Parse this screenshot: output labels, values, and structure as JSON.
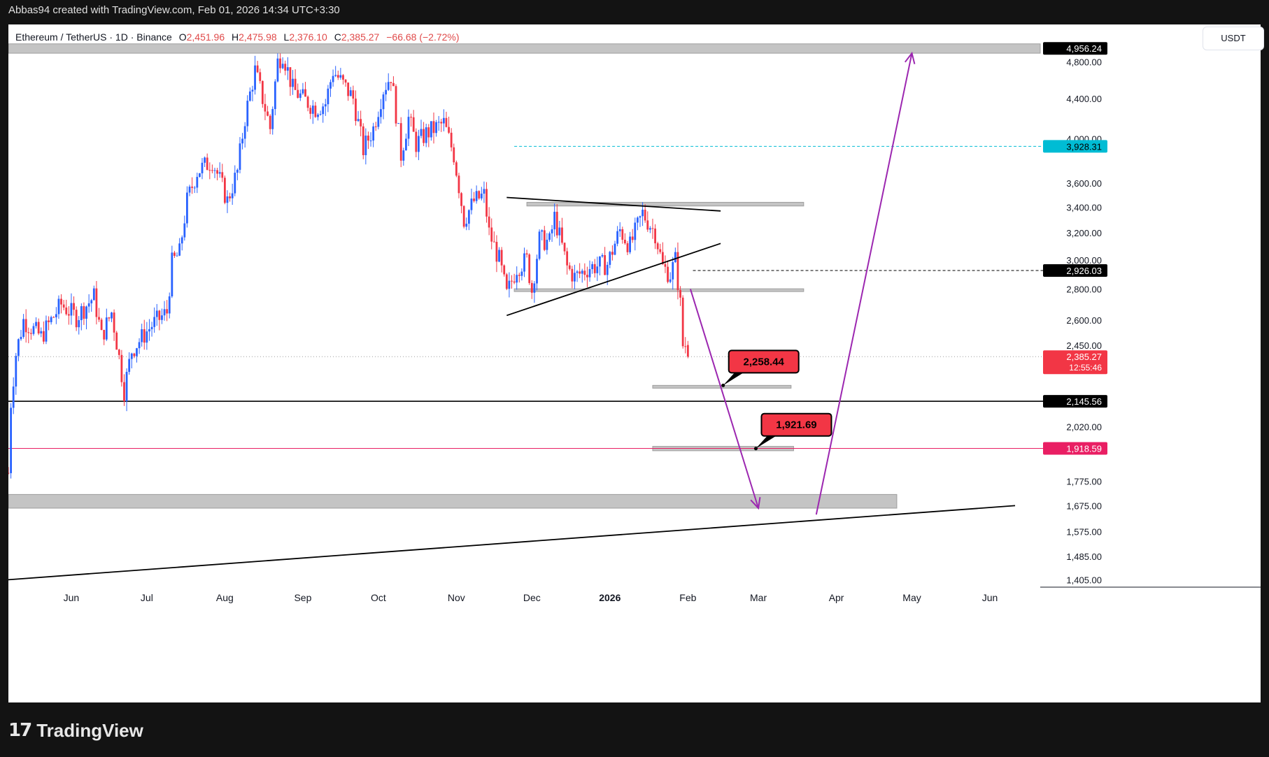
{
  "header": {
    "text": "Abbas94 created with TradingView.com, Feb 01, 2026 14:34 UTC+3:30"
  },
  "symbol": {
    "name": "Ethereum / TetherUS · 1D · Binance",
    "o_label": "O",
    "o_value": "2,451.96",
    "h_label": "H",
    "h_value": "2,475.98",
    "l_label": "L",
    "l_value": "2,376.10",
    "c_label": "C",
    "c_value": "2,385.27",
    "change": "−66.68 (−2.72%)"
  },
  "currency_button": "USDT",
  "footer": {
    "logo_text": "TradingView"
  },
  "colors": {
    "up": "#2962ff",
    "down": "#f23645",
    "purple": "#9c27b0",
    "level_pink": "#e91e63",
    "cyan": "#00bcd4",
    "zone_gray": "#c4c4c4"
  },
  "chart_data": {
    "type": "candlestick",
    "symbol": "ETHUSDT",
    "interval": "1D",
    "y_axis": {
      "scale": "log",
      "range": [
        1360,
        5100
      ],
      "ticks": [
        "4,800.00",
        "4,400.00",
        "4,000.00",
        "3,600.00",
        "3,400.00",
        "3,200.00",
        "3,000.00",
        "2,800.00",
        "2,600.00",
        "2,450.00",
        "2,020.00",
        "1,775.00",
        "1,675.00",
        "1,575.00",
        "1,485.00",
        "1,405.00"
      ],
      "price_labels": [
        {
          "value": 4956.24,
          "text": "4,956.24",
          "style": "black"
        },
        {
          "value": 3928.31,
          "text": "3,928.31",
          "style": "cyan"
        },
        {
          "value": 2926.03,
          "text": "2,926.03",
          "style": "black"
        },
        {
          "value": 2385.27,
          "text": "2,385.27",
          "sub": "12:55:46",
          "style": "red"
        },
        {
          "value": 2145.56,
          "text": "2,145.56",
          "style": "black"
        },
        {
          "value": 1918.59,
          "text": "1,918.59",
          "style": "pink"
        }
      ]
    },
    "x_axis": {
      "start": "2025-05-07",
      "end": "2026-06-21",
      "ticks": [
        {
          "date": "2025-06-01",
          "label": "Jun"
        },
        {
          "date": "2025-07-01",
          "label": "Jul"
        },
        {
          "date": "2025-08-01",
          "label": "Aug"
        },
        {
          "date": "2025-09-01",
          "label": "Sep"
        },
        {
          "date": "2025-10-01",
          "label": "Oct"
        },
        {
          "date": "2025-11-01",
          "label": "Nov"
        },
        {
          "date": "2025-12-01",
          "label": "Dec"
        },
        {
          "date": "2026-01-01",
          "label": "2026",
          "bold": true
        },
        {
          "date": "2026-02-01",
          "label": "Feb"
        },
        {
          "date": "2026-03-01",
          "label": "Mar"
        },
        {
          "date": "2026-04-01",
          "label": "Apr"
        },
        {
          "date": "2026-05-01",
          "label": "May"
        },
        {
          "date": "2026-06-01",
          "label": "Jun"
        }
      ]
    },
    "price_path": [
      [
        "2025-05-07",
        1810
      ],
      [
        "2025-05-08",
        2140
      ],
      [
        "2025-05-10",
        2400
      ],
      [
        "2025-05-13",
        2600
      ],
      [
        "2025-05-20",
        2500
      ],
      [
        "2025-05-28",
        2700
      ],
      [
        "2025-06-03",
        2620
      ],
      [
        "2025-06-10",
        2750
      ],
      [
        "2025-06-13",
        2500
      ],
      [
        "2025-06-17",
        2650
      ],
      [
        "2025-06-20",
        2380
      ],
      [
        "2025-06-22",
        2200
      ],
      [
        "2025-06-25",
        2420
      ],
      [
        "2025-07-03",
        2570
      ],
      [
        "2025-07-09",
        2650
      ],
      [
        "2025-07-11",
        2980
      ],
      [
        "2025-07-14",
        3050
      ],
      [
        "2025-07-17",
        3450
      ],
      [
        "2025-07-21",
        3700
      ],
      [
        "2025-07-27",
        3800
      ],
      [
        "2025-08-02",
        3450
      ],
      [
        "2025-08-06",
        3700
      ],
      [
        "2025-08-09",
        4200
      ],
      [
        "2025-08-13",
        4700
      ],
      [
        "2025-08-16",
        4400
      ],
      [
        "2025-08-19",
        4100
      ],
      [
        "2025-08-22",
        4800
      ],
      [
        "2025-08-24",
        4900
      ],
      [
        "2025-08-28",
        4500
      ],
      [
        "2025-09-01",
        4400
      ],
      [
        "2025-09-06",
        4300
      ],
      [
        "2025-09-10",
        4350
      ],
      [
        "2025-09-13",
        4700
      ],
      [
        "2025-09-17",
        4550
      ],
      [
        "2025-09-21",
        4400
      ],
      [
        "2025-09-25",
        3900
      ],
      [
        "2025-09-29",
        4100
      ],
      [
        "2025-10-03",
        4500
      ],
      [
        "2025-10-06",
        4650
      ],
      [
        "2025-10-10",
        3850
      ],
      [
        "2025-10-13",
        4200
      ],
      [
        "2025-10-16",
        3950
      ],
      [
        "2025-10-20",
        4050
      ],
      [
        "2025-10-27",
        4150
      ],
      [
        "2025-10-31",
        3850
      ],
      [
        "2025-11-04",
        3300
      ],
      [
        "2025-11-08",
        3450
      ],
      [
        "2025-11-12",
        3500
      ],
      [
        "2025-11-14",
        3200
      ],
      [
        "2025-11-18",
        3000
      ],
      [
        "2025-11-21",
        2760
      ],
      [
        "2025-11-25",
        2950
      ],
      [
        "2025-11-29",
        3000
      ],
      [
        "2025-12-01",
        2790
      ],
      [
        "2025-12-04",
        3150
      ],
      [
        "2025-12-08",
        3130
      ],
      [
        "2025-12-10",
        3320
      ],
      [
        "2025-12-15",
        2950
      ],
      [
        "2025-12-18",
        2880
      ],
      [
        "2025-12-24",
        2950
      ],
      [
        "2025-12-31",
        2970
      ],
      [
        "2026-01-05",
        3220
      ],
      [
        "2026-01-09",
        3100
      ],
      [
        "2026-01-14",
        3350
      ],
      [
        "2026-01-19",
        3200
      ],
      [
        "2026-01-22",
        2950
      ],
      [
        "2026-01-25",
        2900
      ],
      [
        "2026-01-27",
        3000
      ],
      [
        "2026-01-29",
        2700
      ],
      [
        "2026-01-30",
        2450
      ],
      [
        "2026-01-31",
        2450
      ],
      [
        "2026-02-01",
        2385.27
      ]
    ],
    "last_candle": {
      "date": "2026-02-01",
      "open": 2451.96,
      "high": 2475.98,
      "low": 2376.1,
      "close": 2385.27
    },
    "horizontal_levels": [
      {
        "value": 2145.56,
        "color": "#000000",
        "style": "solid"
      },
      {
        "value": 1918.59,
        "color": "#e91e63",
        "style": "solid"
      },
      {
        "value": 3928.31,
        "color": "#00bcd4",
        "style": "dashed",
        "from": "2025-11-24"
      },
      {
        "value": 2926.03,
        "color": "#000000",
        "style": "dashed",
        "from": "2026-02-03"
      },
      {
        "value": 2385.27,
        "color": "#9e9e9e",
        "style": "dotted"
      }
    ],
    "zones": [
      {
        "top": 5010,
        "bottom": 4900,
        "from": "2025-05-07",
        "to": "2026-06-21"
      },
      {
        "top": 3440,
        "bottom": 3410,
        "from": "2025-11-29",
        "to": "2026-03-19"
      },
      {
        "top": 2802,
        "bottom": 2786,
        "from": "2025-11-24",
        "to": "2026-03-19"
      },
      {
        "top": 2228,
        "bottom": 2218,
        "from": "2026-01-18",
        "to": "2026-03-14"
      },
      {
        "top": 1928,
        "bottom": 1908,
        "from": "2026-01-18",
        "to": "2026-03-15"
      },
      {
        "top": 1720,
        "bottom": 1665,
        "from": "2025-05-07",
        "to": "2026-04-25"
      }
    ],
    "trendlines": [
      {
        "from": [
          "2025-11-21",
          3480
        ],
        "to": [
          "2026-02-14",
          3370
        ]
      },
      {
        "from": [
          "2025-11-21",
          2630
        ],
        "to": [
          "2026-02-14",
          3120
        ]
      },
      {
        "from": [
          "2025-05-07",
          1405
        ],
        "to": [
          "2026-06-11",
          1675
        ]
      }
    ],
    "projection_arrows": [
      {
        "from": [
          "2026-02-02",
          2800
        ],
        "to": [
          "2026-03-01",
          1665
        ]
      },
      {
        "from": [
          "2026-03-24",
          1640
        ],
        "to": [
          "2026-05-01",
          4900
        ]
      }
    ],
    "callouts": [
      {
        "text": "2,258.44",
        "value": 2258.44,
        "anchor": [
          "2026-02-15",
          2228
        ]
      },
      {
        "text": "1,921.69",
        "value": 1921.69,
        "anchor": [
          "2026-02-28",
          1918
        ]
      }
    ]
  }
}
